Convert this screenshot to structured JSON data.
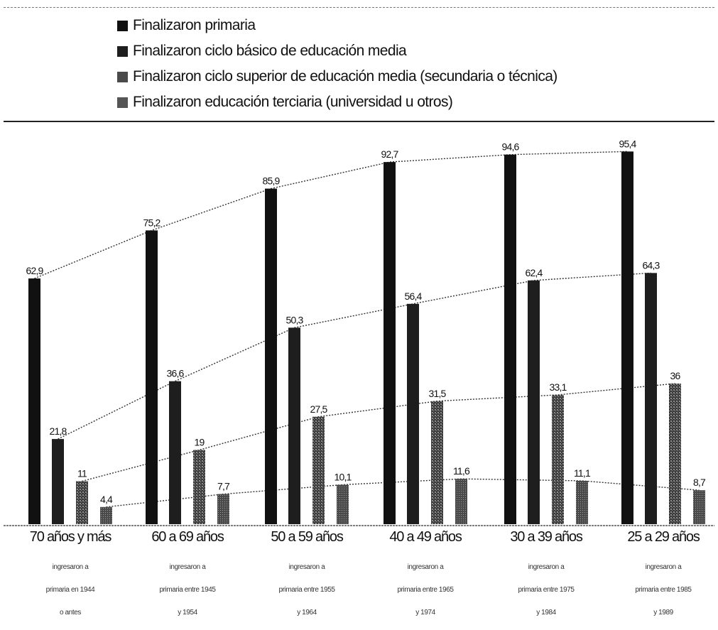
{
  "chart_data": {
    "type": "bar",
    "categories": [
      "70 años y más",
      "60 a 69 años",
      "50 a 59 años",
      "40 a 49 años",
      "30 a 39 años",
      "25 a 29 años"
    ],
    "category_notes": [
      [
        "ingresaron a",
        "primaria en 1944",
        "o antes"
      ],
      [
        "ingresaron a",
        "primaria entre 1945",
        "y 1954"
      ],
      [
        "ingresaron a",
        "primaria entre 1955",
        "y 1964"
      ],
      [
        "ingresaron a",
        "primaria entre 1965",
        "y 1974"
      ],
      [
        "ingresaron a",
        "primaria entre 1975",
        "y 1984"
      ],
      [
        "ingresaron a",
        "primaria entre 1985",
        "y 1989"
      ]
    ],
    "series": [
      {
        "name": "Finalizaron primaria",
        "values": [
          62.9,
          75.2,
          85.9,
          92.7,
          94.6,
          95.4
        ],
        "labels": [
          "62,9",
          "75,2",
          "85,9",
          "92,7",
          "94,6",
          "95,4"
        ],
        "color": "#111111"
      },
      {
        "name": "Finalizaron ciclo básico de educación media",
        "values": [
          21.8,
          36.6,
          50.3,
          56.4,
          62.4,
          64.3
        ],
        "labels": [
          "21,8",
          "36,6",
          "50,3",
          "56,4",
          "62,4",
          "64,3"
        ],
        "color": "#1e1e1e"
      },
      {
        "name": "Finalizaron ciclo superior de educación media (secundaria o técnica)",
        "values": [
          11,
          19,
          27.5,
          31.5,
          33.1,
          36
        ],
        "labels": [
          "11",
          "19",
          "27,5",
          "31,5",
          "33,1",
          "36"
        ],
        "color": "#4a4a4a"
      },
      {
        "name": "Finalizaron educación terciaria (universidad u otros)",
        "values": [
          4.4,
          7.7,
          10.1,
          11.6,
          11.1,
          8.7
        ],
        "labels": [
          "4,4",
          "7,7",
          "10,1",
          "11,6",
          "11,1",
          "8,7"
        ],
        "color": "#555555"
      }
    ],
    "ylim": [
      0,
      100
    ],
    "grid": false,
    "legend_position": "top",
    "trend_lines": "dotted"
  }
}
